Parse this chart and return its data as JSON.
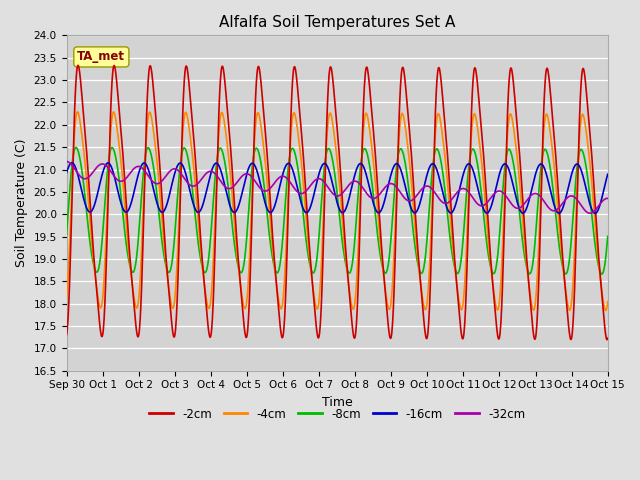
{
  "title": "Alfalfa Soil Temperatures Set A",
  "xlabel": "Time",
  "ylabel": "Soil Temperature (C)",
  "ylim": [
    16.5,
    24.0
  ],
  "yticks": [
    16.5,
    17.0,
    17.5,
    18.0,
    18.5,
    19.0,
    19.5,
    20.0,
    20.5,
    21.0,
    21.5,
    22.0,
    22.5,
    23.0,
    23.5,
    24.0
  ],
  "bg_color": "#e0e0e0",
  "plot_bg_color": "#d3d3d3",
  "legend_labels": [
    "-2cm",
    "-4cm",
    "-8cm",
    "-16cm",
    "-32cm"
  ],
  "legend_colors": [
    "#cc0000",
    "#ff8800",
    "#00bb00",
    "#0000cc",
    "#aa00aa"
  ],
  "annotation_text": "TA_met",
  "annotation_box_color": "#ffff99",
  "annotation_text_color": "#880000",
  "n_points": 1440,
  "start_day": 0,
  "end_day": 15,
  "xtick_positions": [
    0,
    1,
    2,
    3,
    4,
    5,
    6,
    7,
    8,
    9,
    10,
    11,
    12,
    13,
    14,
    15
  ],
  "xtick_labels": [
    "Sep 30",
    "Oct 1",
    "Oct 2",
    "Oct 3",
    "Oct 4",
    "Oct 5",
    "Oct 6",
    "Oct 7",
    "Oct 8",
    "Oct 9",
    "Oct 10",
    "Oct 11",
    "Oct 12",
    "Oct 13",
    "Oct 14",
    "Oct 15"
  ]
}
